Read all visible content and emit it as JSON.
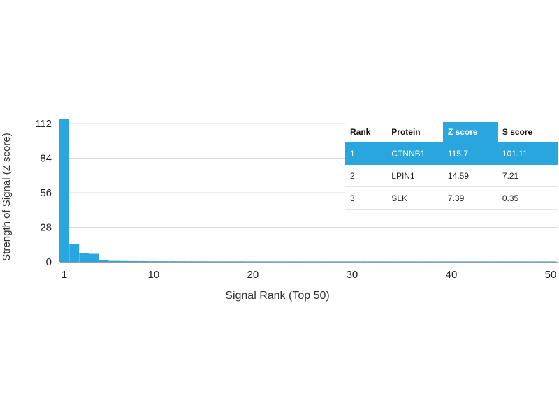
{
  "chart_data": {
    "type": "bar",
    "ylabel": "Strength of Signal (Z score)",
    "xlabel": "Signal Rank (Top 50)",
    "ylim": [
      0,
      112
    ],
    "yticks": [
      0,
      28,
      56,
      84,
      112
    ],
    "xlim": [
      1,
      50
    ],
    "xticks": [
      1,
      10,
      20,
      30,
      40,
      50
    ],
    "grid": true,
    "x": [
      1,
      2,
      3,
      4,
      5,
      6,
      7,
      8,
      9,
      10,
      11,
      12,
      13,
      14,
      15,
      16,
      17,
      18,
      19,
      20,
      21,
      22,
      23,
      24,
      25,
      26,
      27,
      28,
      29,
      30,
      31,
      32,
      33,
      34,
      35,
      36,
      37,
      38,
      39,
      40,
      41,
      42,
      43,
      44,
      45,
      46,
      47,
      48,
      49,
      50
    ],
    "values": [
      115.7,
      14.59,
      7.39,
      6.5,
      1.2,
      0.8,
      0.7,
      0.6,
      0.55,
      0.5,
      0.48,
      0.46,
      0.44,
      0.42,
      0.4,
      0.39,
      0.38,
      0.37,
      0.36,
      0.35,
      0.34,
      0.33,
      0.32,
      0.31,
      0.3,
      0.3,
      0.29,
      0.29,
      0.28,
      0.28,
      0.27,
      0.27,
      0.26,
      0.26,
      0.25,
      0.25,
      0.24,
      0.24,
      0.23,
      0.23,
      0.22,
      0.22,
      0.21,
      0.21,
      0.2,
      0.2,
      0.19,
      0.19,
      0.18,
      0.18
    ],
    "bar_color": "#2aa6df"
  },
  "table": {
    "headers": [
      "Rank",
      "Protein",
      "Z score",
      "S score"
    ],
    "highlight_color": "#2aa6df",
    "rows": [
      {
        "rank": "1",
        "protein": "CTNNB1",
        "z": "115.7",
        "s": "101.11"
      },
      {
        "rank": "2",
        "protein": "LPIN1",
        "z": "14.59",
        "s": "7.21"
      },
      {
        "rank": "3",
        "protein": "SLK",
        "z": "7.39",
        "s": "0.35"
      }
    ]
  }
}
